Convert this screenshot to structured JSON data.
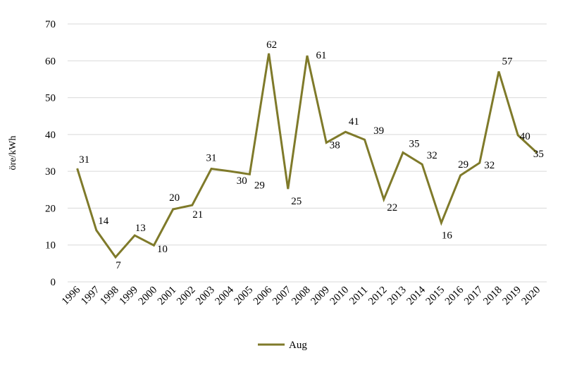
{
  "chart_data": {
    "type": "line",
    "title": "",
    "xlabel": "",
    "ylabel": "öre/kWh",
    "ylim": [
      0,
      70
    ],
    "yticks": [
      0,
      10,
      20,
      30,
      40,
      50,
      60,
      70
    ],
    "grid": true,
    "legend_position": "bottom",
    "categories": [
      "1996",
      "1997",
      "1998",
      "1999",
      "2000",
      "2001",
      "2002",
      "2003",
      "2004",
      "2005",
      "2006",
      "2007",
      "2008",
      "2009",
      "2010",
      "2011",
      "2012",
      "2013",
      "2014",
      "2015",
      "2016",
      "2017",
      "2018",
      "2019",
      "2020"
    ],
    "series": [
      {
        "name": "Aug",
        "color": "#7f7a2a",
        "values": [
          30.8,
          14,
          6.7,
          12.6,
          9.9,
          19.7,
          20.8,
          30.7,
          30,
          29.2,
          62,
          25.2,
          61.4,
          37.8,
          40.7,
          38.6,
          22.4,
          35.1,
          31.9,
          16,
          28.9,
          32.3,
          57.1,
          39.8,
          35
        ],
        "labels": [
          "31",
          "14",
          "7",
          "13",
          "10",
          "20",
          "21",
          "31",
          "30",
          "29",
          "62",
          "25",
          "61",
          "38",
          "41",
          "39",
          "22",
          "35",
          "32",
          "16",
          "29",
          "32",
          "57",
          "40",
          "35"
        ]
      }
    ]
  }
}
